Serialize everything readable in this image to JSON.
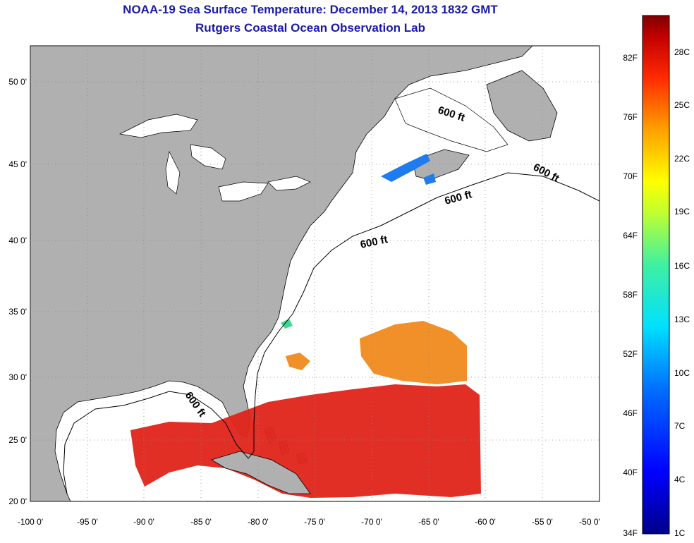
{
  "header": {
    "title": "NOAA-19 Sea Surface Temperature:  December 14, 2013 1832 GMT",
    "subtitle": "Rutgers Coastal Ocean Observation Lab"
  },
  "axes": {
    "x_ticks": [
      "-100 0'",
      "-95 0'",
      "-90 0'",
      "-85 0'",
      "-80 0'",
      "-75 0'",
      "-70 0'",
      "-65 0'",
      "-60 0'",
      "-55 0'",
      "-50 0'"
    ],
    "y_ticks": [
      "50 0'",
      "45 0'",
      "40 0'",
      "35 0'",
      "30 0'",
      "25 0'",
      "20 0'"
    ],
    "lon_range": [
      -100,
      -50
    ],
    "lat_range": [
      20,
      52
    ],
    "grid": "dotted"
  },
  "contour_labels": [
    "600 ft",
    "600 ft",
    "600 ft",
    "600 ft",
    "600 ft"
  ],
  "colorbar": {
    "fahrenheit_labels": [
      "82F",
      "76F",
      "70F",
      "64F",
      "58F",
      "52F",
      "46F",
      "40F",
      "34F"
    ],
    "celsius_labels": [
      "28C",
      "25C",
      "22C",
      "19C",
      "16C",
      "13C",
      "10C",
      "7C",
      "4C",
      "1C"
    ]
  },
  "colors": {
    "land": "#b0b0b0",
    "title": "#1a1aa6",
    "warm": "#e0241a",
    "orange": "#f08a1e"
  }
}
